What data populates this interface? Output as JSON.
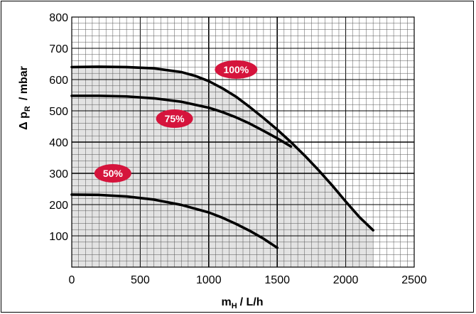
{
  "chart_data": {
    "type": "line",
    "x_ticks": [
      0,
      500,
      1000,
      1500,
      2000,
      2500
    ],
    "y_ticks": [
      100,
      200,
      300,
      400,
      500,
      600,
      700,
      800
    ],
    "xlim": [
      0,
      2500
    ],
    "ylim": [
      0,
      800
    ],
    "grid": true,
    "series": [
      {
        "name": "100%",
        "color": "#000000",
        "x": [
          0,
          200,
          400,
          600,
          800,
          900,
          1000,
          1100,
          1200,
          1300,
          1400,
          1500,
          1600,
          1700,
          1800,
          1900,
          2000,
          2100,
          2200
        ],
        "y": [
          640,
          641,
          640,
          636,
          624,
          612,
          595,
          572,
          545,
          512,
          477,
          440,
          400,
          357,
          311,
          262,
          210,
          160,
          118
        ]
      },
      {
        "name": "75%",
        "color": "#000000",
        "x": [
          0,
          200,
          400,
          600,
          800,
          1000,
          1100,
          1200,
          1300,
          1400,
          1500,
          1600
        ],
        "y": [
          548,
          548,
          546,
          540,
          529,
          510,
          496,
          479,
          459,
          436,
          412,
          386
        ]
      },
      {
        "name": "50%",
        "color": "#000000",
        "x": [
          0,
          200,
          400,
          600,
          800,
          1000,
          1100,
          1200,
          1300,
          1400,
          1500
        ],
        "y": [
          232,
          231,
          226,
          216,
          199,
          175,
          158,
          138,
          116,
          91,
          62
        ]
      }
    ],
    "labels": [
      {
        "text": "100%",
        "x": 1200,
        "y": 632
      },
      {
        "text": "75%",
        "x": 750,
        "y": 475
      },
      {
        "text": "50%",
        "x": 300,
        "y": 300
      }
    ],
    "badge_color": "#d5143c",
    "shade_color": "#e3e3e3"
  },
  "axes": {
    "y_label": "Δ p",
    "y_label_sub": "R",
    "y_label_unit": "/ mbar",
    "x_label": "m",
    "x_label_sub": "H",
    "x_label_unit": "/ L/h"
  }
}
